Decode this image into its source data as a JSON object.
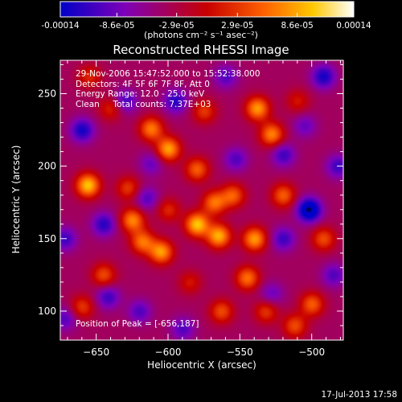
{
  "colorbar": {
    "ticks": [
      "-0.00014",
      "-8.6e-05",
      "-2.9e-05",
      "2.9e-05",
      "8.6e-05",
      "0.00014"
    ],
    "tick_values": [
      -0.00014,
      -8.6e-05,
      -2.9e-05,
      2.9e-05,
      8.6e-05,
      0.00014
    ],
    "range": [
      -0.00014,
      0.00014
    ],
    "unit_label": "(photons cm⁻² s⁻¹ asec⁻²)",
    "colors": [
      "#0000c8",
      "#7e00b8",
      "#c80000",
      "#ff6400",
      "#ffc800",
      "#ffffff"
    ]
  },
  "chart_data": {
    "type": "heatmap",
    "title": "Reconstructed RHESSI Image",
    "xlabel": "Heliocentric X (arcsec)",
    "ylabel": "Heliocentric Y (arcsec)",
    "xlim": [
      -675,
      -478
    ],
    "ylim": [
      80,
      273
    ],
    "xticks": [
      -650,
      -600,
      -550,
      -500
    ],
    "yticks": [
      100,
      150,
      200,
      250
    ],
    "annotations": [
      "29-Nov-2006 15:47:52.000 to 15:52:38.000",
      "Detectors: 4F 5F 6F 7F 8F, Att 0",
      "Energy Range: 12.0 - 25.0 keV",
      "Clean     Total counts: 7.37E+03"
    ],
    "peak_label": "Position of Peak = [-656,187]",
    "peak": [
      -656,
      187
    ],
    "minimum": [
      -502,
      170
    ],
    "sources": [
      {
        "x": -580,
        "y": 160,
        "value": 0.00014
      },
      {
        "x": -565,
        "y": 152,
        "value": 0.00013
      },
      {
        "x": -656,
        "y": 187,
        "value": 0.00014
      },
      {
        "x": -600,
        "y": 212,
        "value": 0.000125
      },
      {
        "x": -612,
        "y": 226,
        "value": 0.000105
      },
      {
        "x": -538,
        "y": 240,
        "value": 0.00012
      },
      {
        "x": -528,
        "y": 222,
        "value": 0.00011
      },
      {
        "x": -540,
        "y": 150,
        "value": 0.00012
      },
      {
        "x": -545,
        "y": 123,
        "value": 0.0001
      },
      {
        "x": -605,
        "y": 141,
        "value": 0.00012
      },
      {
        "x": -618,
        "y": 148,
        "value": 0.0001
      },
      {
        "x": -625,
        "y": 163,
        "value": 0.00011
      },
      {
        "x": -580,
        "y": 198,
        "value": 9e-05
      },
      {
        "x": -568,
        "y": 175,
        "value": 0.0001
      },
      {
        "x": -555,
        "y": 180,
        "value": 9e-05
      },
      {
        "x": -520,
        "y": 180,
        "value": 9e-05
      },
      {
        "x": -492,
        "y": 150,
        "value": 8e-05
      },
      {
        "x": -500,
        "y": 105,
        "value": 9e-05
      },
      {
        "x": -512,
        "y": 90,
        "value": 8e-05
      },
      {
        "x": -563,
        "y": 100,
        "value": 8e-05
      },
      {
        "x": -532,
        "y": 100,
        "value": 7e-05
      },
      {
        "x": -645,
        "y": 125,
        "value": 8e-05
      },
      {
        "x": -660,
        "y": 103,
        "value": 7e-05
      },
      {
        "x": -628,
        "y": 185,
        "value": 7e-05
      },
      {
        "x": -640,
        "y": 240,
        "value": 6e-05
      },
      {
        "x": -575,
        "y": 238,
        "value": 7e-05
      },
      {
        "x": -655,
        "y": 262,
        "value": 6e-05
      },
      {
        "x": -600,
        "y": 170,
        "value": 6e-05
      },
      {
        "x": -585,
        "y": 120,
        "value": 5e-05
      },
      {
        "x": -510,
        "y": 245,
        "value": 5e-05
      },
      {
        "x": -502,
        "y": 170,
        "value": -0.00014
      },
      {
        "x": -660,
        "y": 225,
        "value": -9e-05
      },
      {
        "x": -645,
        "y": 160,
        "value": -8e-05
      },
      {
        "x": -642,
        "y": 110,
        "value": -7e-05
      },
      {
        "x": -595,
        "y": 245,
        "value": -8e-05
      },
      {
        "x": -630,
        "y": 245,
        "value": -7e-05
      },
      {
        "x": -492,
        "y": 262,
        "value": -9e-05
      },
      {
        "x": -520,
        "y": 208,
        "value": -7e-05
      },
      {
        "x": -520,
        "y": 150,
        "value": -7e-05
      },
      {
        "x": -482,
        "y": 200,
        "value": -7e-05
      },
      {
        "x": -553,
        "y": 205,
        "value": -6e-05
      },
      {
        "x": -672,
        "y": 150,
        "value": -7e-05
      },
      {
        "x": -620,
        "y": 100,
        "value": -6e-05
      },
      {
        "x": -615,
        "y": 178,
        "value": -6e-05
      },
      {
        "x": -485,
        "y": 125,
        "value": -6e-05
      },
      {
        "x": -672,
        "y": 95,
        "value": -6e-05
      },
      {
        "x": -560,
        "y": 262,
        "value": -6e-05
      },
      {
        "x": -528,
        "y": 112,
        "value": -5e-05
      },
      {
        "x": -590,
        "y": 88,
        "value": -6e-05
      },
      {
        "x": -612,
        "y": 202,
        "value": -5e-05
      },
      {
        "x": -505,
        "y": 228,
        "value": -5e-05
      }
    ]
  },
  "footer": {
    "timestamp": "17-Jul-2013 17:58"
  }
}
